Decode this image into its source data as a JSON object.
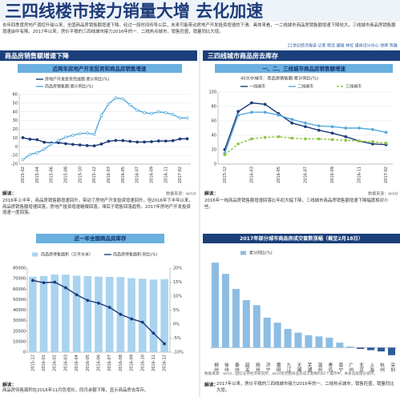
{
  "header": {
    "title": "三四线楼市接力销量大增 去化加速",
    "intro": "去年四季度房地产调控升级以来，全国商品房销售额增速下降。经过一段时间传导以后，未来可能带动房地产开发投资增速的下滑。具体来看，一二线城市商品房销售额增速下降较大，三线城市商品房销售额增速由中有降。2017年以来，房价平稳的三四线城市接力2016年的一、二线热点城市，销售旺盛，销量同比大增。",
    "byline": "21世纪经济报道 记者 杨清 编辑 林虹 媒体设计中心 徐辉 陈雅"
  },
  "sections": [
    "商品房销售额增速下降",
    "三四线城市商品房去库存"
  ],
  "chart_data": [
    {
      "type": "line",
      "title": "近两年房地产开发投资和商品房销售增速",
      "note_label": "解读：",
      "source": "数据来源：wind",
      "note": "2016年上半年，商品房销售额增速回升，带动了房地产开发投资增速回升。但2016年下半年以来，商品房销售额增速回落，房地产投资增速略微回落，滞后于销售回落趋势。2017年房地产开发投资增速一度回落。",
      "categories": [
        "2015-02",
        null,
        "2015-04",
        null,
        "2015-06",
        null,
        "2015-08",
        null,
        "2015-10",
        null,
        "2015-12",
        null,
        "2016-03",
        null,
        "2016-05",
        null,
        "2016-07",
        null,
        "2016-09",
        null,
        "2016-11",
        null,
        "2017-02",
        null
      ],
      "series": [
        {
          "name": "房地产开发投资完成额:累计同比(%)",
          "color": "#1d3a78",
          "values": [
            10.4,
            8.5,
            8,
            5.1,
            4.3,
            4.6,
            3.5,
            2.6,
            2,
            1.3,
            1,
            3,
            6.2,
            7.2,
            7,
            6.1,
            5.3,
            5.4,
            5.8,
            6.6,
            6.5,
            6.9,
            8.9,
            9.1
          ]
        },
        {
          "name": "商品房销售额:累计同比(%)",
          "color": "#56a9dc",
          "values": [
            -15,
            -9,
            -7,
            -3,
            3,
            7,
            11,
            13,
            15,
            15.6,
            14,
            36,
            49,
            56,
            55,
            48,
            42,
            39,
            38,
            40,
            39,
            37,
            33,
            33
          ]
        }
      ],
      "ylim": [
        -20,
        60
      ],
      "yticks": [
        -20,
        -10,
        0,
        10,
        20,
        30,
        40,
        50,
        60
      ],
      "grid": true
    },
    {
      "type": "line",
      "title": "一、二、三线城市商品房销售额增速",
      "legend_title": "40大中城市：商品房销售额:累计同比(%)",
      "note_label": "解读：",
      "source": "数据来源：wind",
      "note": "2016年一线商品房销售额增速回落比年初大幅下降，三线城市商品房销售额增速下降幅度相对小些。",
      "categories": [
        "2015-12",
        null,
        "2016-03",
        null,
        "2016-05",
        null,
        "2016-07",
        null,
        "2016-09",
        null,
        "2016-11",
        null,
        "2017-02"
      ],
      "series": [
        {
          "name": "一线城市",
          "color": "#1d3a78",
          "values": [
            20,
            73,
            85,
            83,
            70,
            57,
            52,
            47,
            43,
            38,
            32,
            28,
            27
          ]
        },
        {
          "name": "二线城市",
          "color": "#56a9dc",
          "values": [
            15,
            68,
            72,
            72,
            68,
            62,
            57,
            53,
            52,
            50,
            50,
            48,
            44
          ]
        },
        {
          "name": "三线城市",
          "color": "#8cc63f",
          "dashed": true,
          "values": [
            13,
            28,
            35,
            37,
            38,
            36,
            35,
            35,
            34,
            33,
            32,
            31,
            29
          ]
        }
      ],
      "ylim": [
        0,
        100
      ],
      "yticks": [
        0,
        20,
        40,
        60,
        80,
        100
      ],
      "grid": true
    },
    {
      "type": "bar",
      "title": "近一年全国商品房库存",
      "note_label": "解读：",
      "note": "商品房待售面积在2016年11月负增长，同月余额下降，显示商品房去库存。",
      "categories": [
        "2015-12",
        "2016-01",
        "2016-02",
        "2016-03",
        "2016-04",
        "2016-05",
        "2016-06",
        "2016-07",
        "2016-08",
        "2016-09",
        "2016-10",
        "2016-11",
        "2016-12"
      ],
      "series": [
        {
          "name": "商品房待售面积（万平方米）",
          "color": "#a9d3ef",
          "type": "bar",
          "values": [
            71853,
            72500,
            73931,
            73777,
            72808,
            72443,
            71866,
            71619,
            71483,
            70463,
            69925,
            69095,
            69539
          ]
        },
        {
          "name": "商品房待售面积:同比(%)",
          "color": "#1d3a78",
          "type": "line",
          "axis": "y2",
          "values": [
            15.6,
            14.8,
            15,
            13,
            10.5,
            8.5,
            7.5,
            6,
            3.5,
            1.9,
            0.7,
            -3.2,
            -7
          ]
        }
      ],
      "ylim": [
        0,
        80000
      ],
      "yticks": [
        0,
        10000,
        20000,
        30000,
        40000,
        50000,
        60000,
        70000,
        80000
      ],
      "y2lim": [
        -10,
        20
      ],
      "y2ticks": [
        {
          "value": -10,
          "label": "-10%"
        },
        {
          "value": -5,
          "label": "-5%"
        },
        {
          "value": 0,
          "label": "0%"
        },
        {
          "value": 5,
          "label": "5%"
        },
        {
          "value": 10,
          "label": "10%"
        },
        {
          "value": 15,
          "label": "15%"
        },
        {
          "value": 20,
          "label": "20%"
        }
      ],
      "grid": false
    },
    {
      "type": "bar",
      "title": "2017年部分城市商品房成交套数涨幅（截至2月18日）",
      "source": "数据来源：wind，国信证券经济研究所。wind有完整商品房成交套数的62个城市中，本表选取部分城市。",
      "note_label": "解读：",
      "note": "2017年以来，房价平稳的三四线城市接力2016年的一、二线热点城市，销售旺盛，销量同比大增。",
      "categories": [
        "柳州",
        "徐州",
        "泰州",
        "韶关",
        "扬州",
        "济宁",
        "莆田",
        "九江",
        "无锡",
        "芜湖",
        "温州",
        "青岛",
        "南宁",
        "广州",
        "北京",
        "上海",
        "杭州",
        "深圳"
      ],
      "series": [
        {
          "name": "累计同比(%)",
          "color": "#8dbde3",
          "negative_color": "#2f5a9a",
          "values": [
            680,
            590,
            470,
            380,
            340,
            240,
            200,
            150,
            120,
            100,
            90,
            80,
            40,
            10,
            -10,
            -20,
            -30,
            -60
          ]
        }
      ],
      "ylim": [
        -100,
        700
      ],
      "grid": false
    }
  ]
}
